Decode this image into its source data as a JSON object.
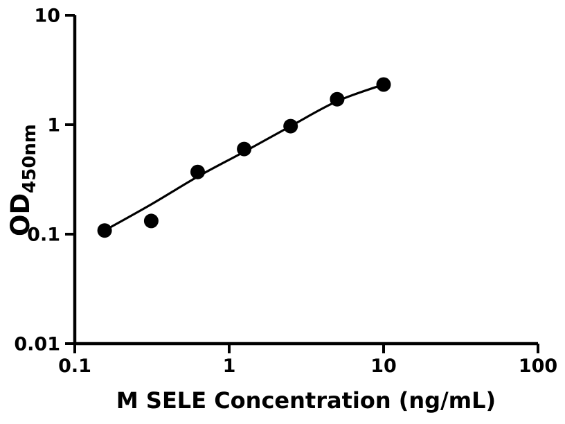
{
  "chart_data": {
    "type": "scatter",
    "title": "",
    "xlabel": "M SELE Concentration (ng/mL)",
    "ylabel": "OD",
    "ylabel_subscript": "450nm",
    "x_scale": "log",
    "y_scale": "log",
    "xlim": [
      0.1,
      100
    ],
    "ylim": [
      0.01,
      10
    ],
    "x_ticks": [
      "0.1",
      "1",
      "10",
      "100"
    ],
    "y_ticks": [
      "10",
      "1",
      "0.1",
      "0.01"
    ],
    "grid": false,
    "legend": false,
    "series": [
      {
        "name": "standard-points",
        "kind": "scatter",
        "x": [
          0.156,
          0.3125,
          0.625,
          1.25,
          2.5,
          5,
          10
        ],
        "y": [
          0.108,
          0.132,
          0.37,
          0.6,
          0.97,
          1.71,
          2.33
        ],
        "marker": "circle",
        "color": "#000000"
      },
      {
        "name": "fit-curve",
        "kind": "line",
        "x": [
          0.156,
          0.3125,
          0.625,
          1.25,
          2.5,
          5,
          10
        ],
        "y": [
          0.108,
          0.187,
          0.335,
          0.566,
          0.97,
          1.64,
          2.33
        ],
        "color": "#000000"
      }
    ],
    "colors": {
      "background": "#ffffff",
      "axis": "#000000",
      "marker": "#000000",
      "line": "#000000"
    }
  }
}
